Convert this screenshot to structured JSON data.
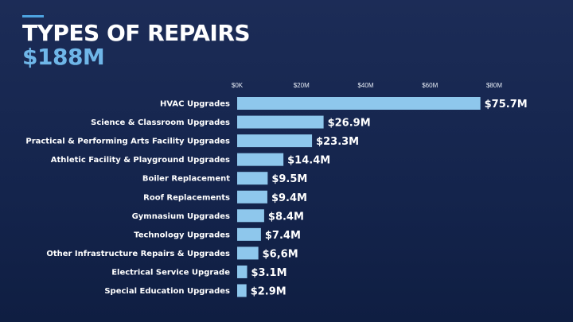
{
  "header": {
    "title": "TYPES OF REPAIRS",
    "subtitle": "$188M"
  },
  "colors": {
    "background": "#172853",
    "bar": "#8ec7ec",
    "subtitle": "#6fb6e8",
    "accent": "#4da3e0",
    "text": "#ffffff"
  },
  "chart_data": {
    "type": "bar",
    "orientation": "horizontal",
    "xlim": [
      0,
      80
    ],
    "x_ticks": [
      0,
      20,
      40,
      60,
      80
    ],
    "x_tick_labels": [
      "$0K",
      "$20M",
      "$40M",
      "$60M",
      "$80M"
    ],
    "x_axis_position": "top",
    "grid": false,
    "categories": [
      "HVAC Upgrades",
      "Science & Classroom Upgrades",
      "Practical & Performing Arts Facility Upgrades",
      "Athletic Facility & Playground Upgrades",
      "Boiler Replacement",
      "Roof Replacements",
      "Gymnasium Upgrades",
      "Technology Upgrades",
      "Other Infrastructure Repairs & Upgrades",
      "Electrical Service Upgrade",
      "Special Education Upgrades"
    ],
    "values": [
      75.7,
      26.9,
      23.3,
      14.4,
      9.5,
      9.4,
      8.4,
      7.4,
      6.6,
      3.1,
      2.9
    ],
    "value_labels": [
      "$75.7M",
      "$26.9M",
      "$23.3M",
      "$14.4M",
      "$9.5M",
      "$9.4M",
      "$8.4M",
      "$7.4M",
      "$6,6M",
      "$3.1M",
      "$2.9M"
    ]
  }
}
